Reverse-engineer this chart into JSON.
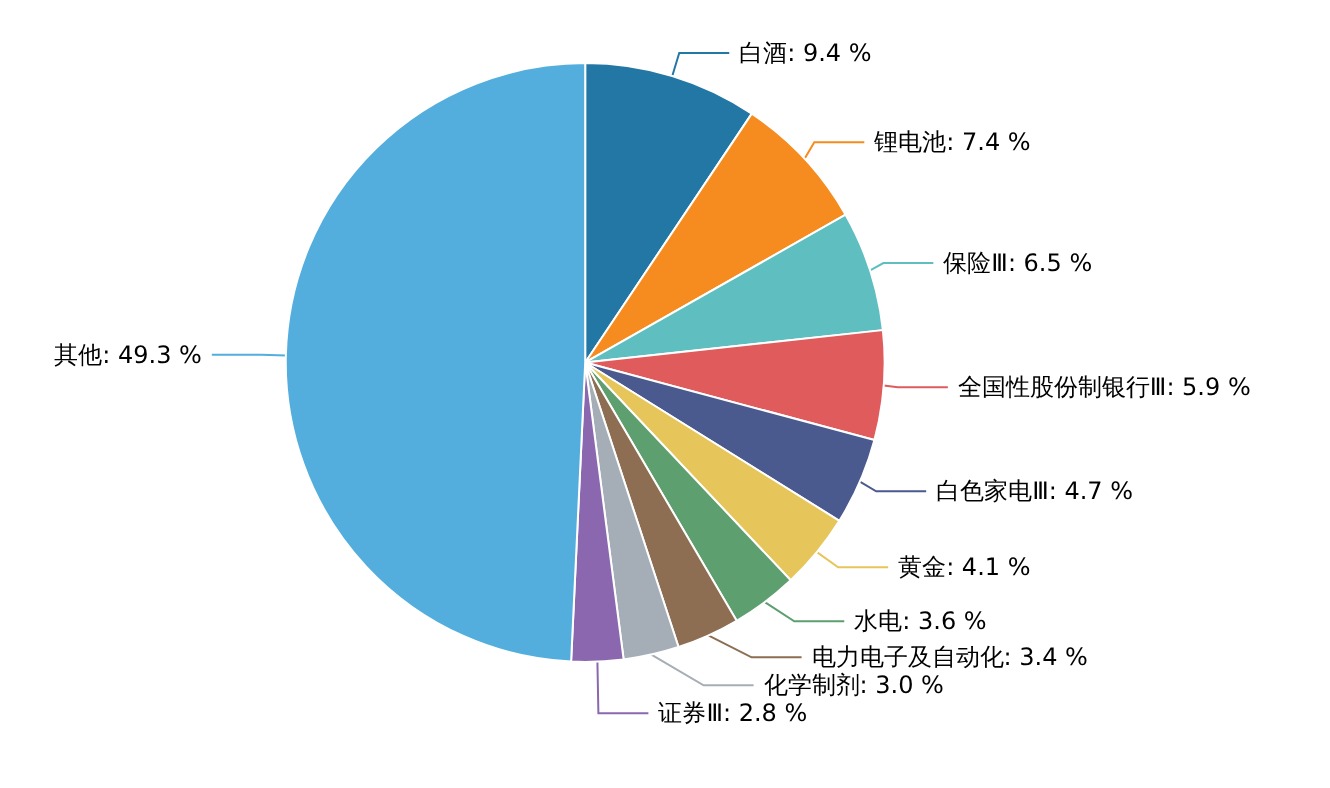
{
  "chart_data": {
    "type": "pie",
    "categories": [
      "白酒",
      "锂电池",
      "保险Ⅲ",
      "全国性股份制银行Ⅲ",
      "白色家电Ⅲ",
      "黄金",
      "水电",
      "电力电子及自动化",
      "化学制剂",
      "证券Ⅲ",
      "其他"
    ],
    "values": [
      9.4,
      7.4,
      6.5,
      5.9,
      4.7,
      4.1,
      3.6,
      3.4,
      3.0,
      2.8,
      49.3
    ],
    "value_labels": [
      "9.4 %",
      "7.4 %",
      "6.5 %",
      "5.9 %",
      "4.7 %",
      "4.1 %",
      "3.6 %",
      "3.4 %",
      "3.0 %",
      "2.8 %",
      "49.3 %"
    ],
    "colors": [
      "#2377a4",
      "#f68b1f",
      "#5fbfc0",
      "#e05b5b",
      "#4a5a8e",
      "#e6c65a",
      "#5e9f6f",
      "#8d6e52",
      "#a5aeb7",
      "#8a67ae",
      "#53aedd"
    ],
    "legend": false
  }
}
